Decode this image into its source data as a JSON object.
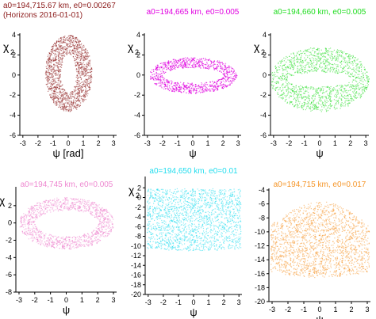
{
  "chart_data": [
    {
      "type": "scatter",
      "title_lines": [
        "a0=194,715.67 km, e0=0.00267",
        "(Horizons 2016-01-01)"
      ],
      "color": "#8B1A1A",
      "xlabel": "ψ [rad]",
      "ylabel_main": "χ",
      "ylabel_sub": "2",
      "xlim": [
        -3.2,
        3.2
      ],
      "ylim": [
        -6,
        4
      ],
      "x_ticks": [
        -3,
        -2,
        -1,
        0,
        1,
        2,
        3
      ],
      "y_ticks": [
        4,
        2,
        0,
        -2,
        -4,
        -6
      ],
      "shape": "ring",
      "ring": {
        "cx": 0,
        "cy": 0.2,
        "outer_rx": 1.55,
        "outer_ry": 3.8,
        "inner_rx": 0.5,
        "inner_ry": 1.9
      }
    },
    {
      "type": "scatter",
      "title_lines": [
        "a0=194,665 km, e0=0.005"
      ],
      "color": "#E000E0",
      "xlabel": "ψ",
      "ylabel_main": "χ",
      "ylabel_sub": "2",
      "xlim": [
        -3.2,
        3.2
      ],
      "ylim": [
        -6,
        4
      ],
      "x_ticks": [
        -3,
        -2,
        -1,
        0,
        1,
        2,
        3
      ],
      "y_ticks": [
        4,
        2,
        0,
        -2,
        -4,
        -6
      ],
      "shape": "ring",
      "ring": {
        "cx": 0,
        "cy": 0,
        "outer_rx": 2.9,
        "outer_ry": 1.8,
        "inner_rx": 2.0,
        "inner_ry": 0.75
      }
    },
    {
      "type": "scatter",
      "title_lines": [
        "a0=194,660 km, e0=0.005"
      ],
      "color": "#22DD22",
      "xlabel": "ψ",
      "ylabel_main": "χ",
      "ylabel_sub": "2",
      "xlim": [
        -3.2,
        3.2
      ],
      "ylim": [
        -6,
        4
      ],
      "x_ticks": [
        -3,
        -2,
        -1,
        0,
        1,
        2,
        3
      ],
      "y_ticks": [
        4,
        2,
        0,
        -2,
        -4,
        -6
      ],
      "shape": "ring",
      "ring": {
        "cx": 0,
        "cy": -0.4,
        "outer_rx": 3.2,
        "outer_ry": 3.2,
        "inner_rx": 2.1,
        "inner_ry": 0.7
      }
    },
    {
      "type": "scatter",
      "title_lines": [
        "a0=194,745 km, e0=0.005"
      ],
      "color": "#EE88D0",
      "xlabel": "ψ",
      "ylabel_main": "χ",
      "ylabel_sub": "",
      "xlim": [
        -3.2,
        3.2
      ],
      "ylim": [
        -8,
        4
      ],
      "x_ticks": [
        -3,
        -2,
        -1,
        0,
        1,
        2,
        3
      ],
      "y_ticks": [
        2,
        0,
        -2,
        -4,
        -6,
        -8
      ],
      "shape": "ring",
      "ring": {
        "cx": 0,
        "cy": 0,
        "outer_rx": 3.0,
        "outer_ry": 3.0,
        "inner_rx": 2.0,
        "inner_ry": 1.5
      }
    },
    {
      "type": "scatter",
      "title_lines": [
        "a0=194,650 km, e0=0.01"
      ],
      "color": "#22DDEE",
      "xlabel": "ψ",
      "ylabel_main": "χ",
      "ylabel_sub": "2",
      "xlim": [
        -3.2,
        3.2
      ],
      "ylim": [
        -20,
        4
      ],
      "x_ticks": [
        -3,
        -2,
        -1,
        0,
        1,
        2,
        3
      ],
      "y_ticks": [
        2,
        0,
        -2,
        -4,
        -6,
        -8,
        -10,
        -12,
        -14,
        -16,
        -18,
        -20
      ],
      "shape": "band",
      "band": {
        "x_min": -3.1,
        "x_max": 3.1,
        "y_min": -10.5,
        "y_max": 1.8,
        "bulge": 0.4
      }
    },
    {
      "type": "scatter",
      "title_lines": [
        "a0=194,715 km, e0=0.017"
      ],
      "color": "#F5962A",
      "xlabel": "ψ",
      "ylabel_main": "",
      "ylabel_sub": "",
      "xlim": [
        -3.2,
        3.2
      ],
      "ylim": [
        -20,
        -4
      ],
      "x_ticks": [
        -3,
        -2,
        -1,
        0,
        1,
        2,
        3
      ],
      "y_ticks": [
        -4,
        -6,
        -8,
        -10,
        -12,
        -14,
        -16,
        -18,
        -20
      ],
      "shape": "dome",
      "dome": {
        "x_min": -3.1,
        "x_max": 3.1,
        "y_center": -10,
        "base_low": -16.5,
        "peak_high": -5.6,
        "edge_high": -9.0
      }
    }
  ]
}
